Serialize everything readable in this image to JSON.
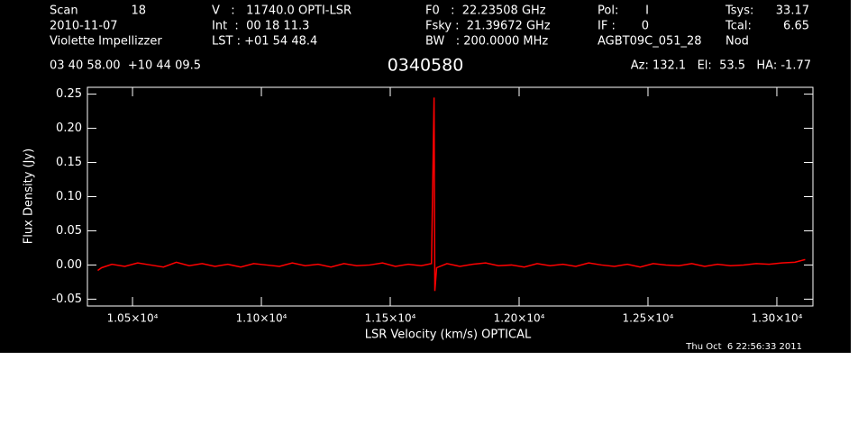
{
  "chart_data": {
    "type": "line",
    "title": "0340580",
    "xlabel": "LSR Velocity (km/s) OPTICAL",
    "ylabel": "Flux Density (Jy)",
    "annotations": [
      "Scan",
      "18",
      "2010-11-07",
      "Violette Impellizzer",
      "V   :   11740.0 OPTI-LSR",
      "Int  :  00 18 11.3",
      "LST : +01 54 48.4",
      "F0   :  22.23508 GHz",
      "Fsky :  21.39672 GHz",
      "BW   : 200.0000 MHz",
      "Pol:",
      "I",
      "IF :",
      "0",
      "AGBT09C_051_28",
      "Nod",
      "Tsys:",
      "33.17",
      "Tcal:",
      "6.65",
      "03 40 58.00  +10 44 09.5",
      "Az: 132.1   El:  53.5   HA: -1.77",
      "Thu Oct  6 22:56:33 2011"
    ],
    "color": "#ff0000",
    "x": [
      10365,
      10380,
      10420,
      10470,
      10520,
      10570,
      10620,
      10670,
      10720,
      10770,
      10820,
      10870,
      10920,
      10970,
      11020,
      11070,
      11120,
      11170,
      11220,
      11270,
      11320,
      11370,
      11420,
      11470,
      11520,
      11570,
      11620,
      11660,
      11670,
      11673,
      11680,
      11720,
      11770,
      11820,
      11870,
      11920,
      11970,
      12020,
      12070,
      12120,
      12170,
      12220,
      12270,
      12320,
      12370,
      12420,
      12470,
      12520,
      12570,
      12620,
      12670,
      12720,
      12770,
      12820,
      12870,
      12920,
      12970,
      13020,
      13070,
      13090,
      13110
    ],
    "values": [
      -0.008,
      -0.004,
      0.001,
      -0.002,
      0.003,
      0.0,
      -0.003,
      0.004,
      -0.001,
      0.002,
      -0.002,
      0.001,
      -0.003,
      0.002,
      0.0,
      -0.002,
      0.003,
      -0.001,
      0.001,
      -0.003,
      0.002,
      -0.001,
      0.0,
      0.003,
      -0.002,
      0.001,
      -0.001,
      0.002,
      0.245,
      -0.038,
      -0.004,
      0.002,
      -0.002,
      0.001,
      0.003,
      -0.001,
      0.0,
      -0.003,
      0.002,
      -0.001,
      0.001,
      -0.002,
      0.003,
      0.0,
      -0.002,
      0.001,
      -0.003,
      0.002,
      0.0,
      -0.001,
      0.002,
      -0.002,
      0.001,
      -0.001,
      0.0,
      0.002,
      0.001,
      0.003,
      0.004,
      0.006,
      0.008
    ],
    "xlim": [
      10325,
      13140
    ],
    "ylim": [
      -0.06,
      0.26
    ],
    "xticks": [
      {
        "value": 10500,
        "label": "1.05×10⁴"
      },
      {
        "value": 11000,
        "label": "1.10×10⁴"
      },
      {
        "value": 11500,
        "label": "1.15×10⁴"
      },
      {
        "value": 12000,
        "label": "1.20×10⁴"
      },
      {
        "value": 12500,
        "label": "1.25×10⁴"
      },
      {
        "value": 13000,
        "label": "1.30×10⁴"
      }
    ],
    "yticks": [
      {
        "value": -0.05,
        "label": "-0.05"
      },
      {
        "value": 0,
        "label": "0.00"
      },
      {
        "value": 0.05,
        "label": "0.05"
      },
      {
        "value": 0.1,
        "label": "0.10"
      },
      {
        "value": 0.15,
        "label": "0.15"
      },
      {
        "value": 0.2,
        "label": "0.20"
      },
      {
        "value": 0.25,
        "label": "0.25"
      }
    ]
  }
}
